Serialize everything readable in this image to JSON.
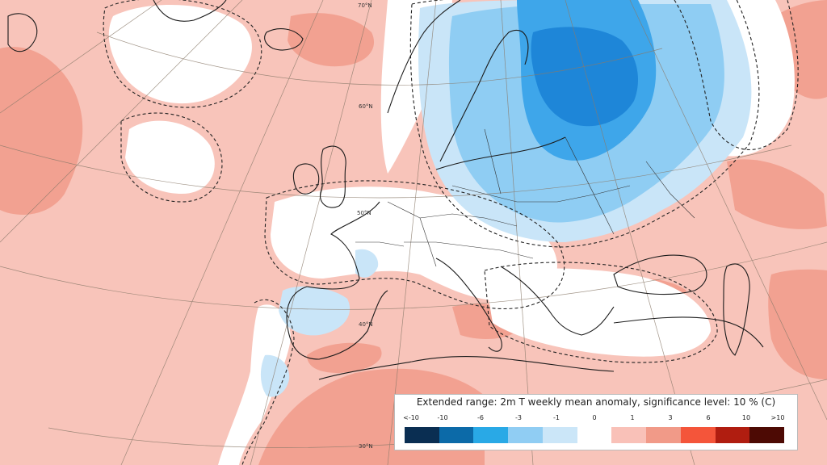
{
  "map": {
    "latitude_labels": [
      "70°N",
      "60°N",
      "50°N",
      "40°N",
      "30°N"
    ]
  },
  "legend": {
    "title": "Extended range: 2m T weekly mean anomaly, significance level: 10 % (C)",
    "ticks": [
      "<-10",
      "-10",
      "-6",
      "-3",
      "-1",
      "0",
      "1",
      "3",
      "6",
      "10",
      ">10"
    ],
    "colors": [
      "#0a2e52",
      "#0c6aa8",
      "#29a9e6",
      "#90cdf3",
      "#cbe6f8",
      "#ffffff",
      "#f9c1b8",
      "#f19a88",
      "#f4553a",
      "#b01d10",
      "#4d0a04"
    ]
  },
  "colors": {
    "warm_light": "#f8c4ba",
    "warm_mid": "#f2a191",
    "cold_light": "#c9e5f8",
    "cold_mid": "#8fcdf3",
    "cold_strong": "#3ea6ea",
    "cold_deep": "#1e86d8"
  }
}
